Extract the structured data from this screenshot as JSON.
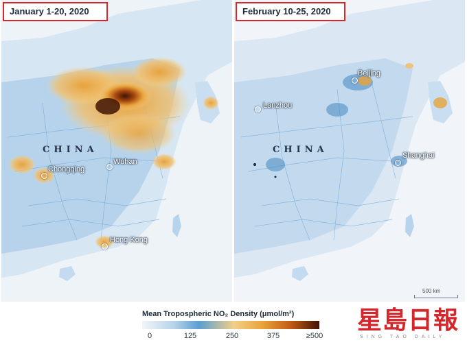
{
  "panels": {
    "left": {
      "date": "January 1-20, 2020",
      "country": "CHINA",
      "cities": [
        "Chongqing",
        "Wuhan",
        "Hong Kong"
      ]
    },
    "right": {
      "date": "February 10-25, 2020",
      "country": "CHINA",
      "cities": [
        "Beijing",
        "Lanzhou",
        "Shanghai"
      ],
      "scale": "500 km"
    }
  },
  "legend": {
    "title": "Mean Tropospheric NO₂ Density (μmol/m²)",
    "ticks": [
      "0",
      "125",
      "250",
      "375",
      "≥500"
    ]
  },
  "logo": {
    "text": "星島日報",
    "subtitle": "SING TAO DAILY"
  },
  "colors": {
    "highlight_border": "#d8262b",
    "low": "#b6d3ea",
    "mid": "#e9a23a",
    "high": "#3f1505"
  }
}
